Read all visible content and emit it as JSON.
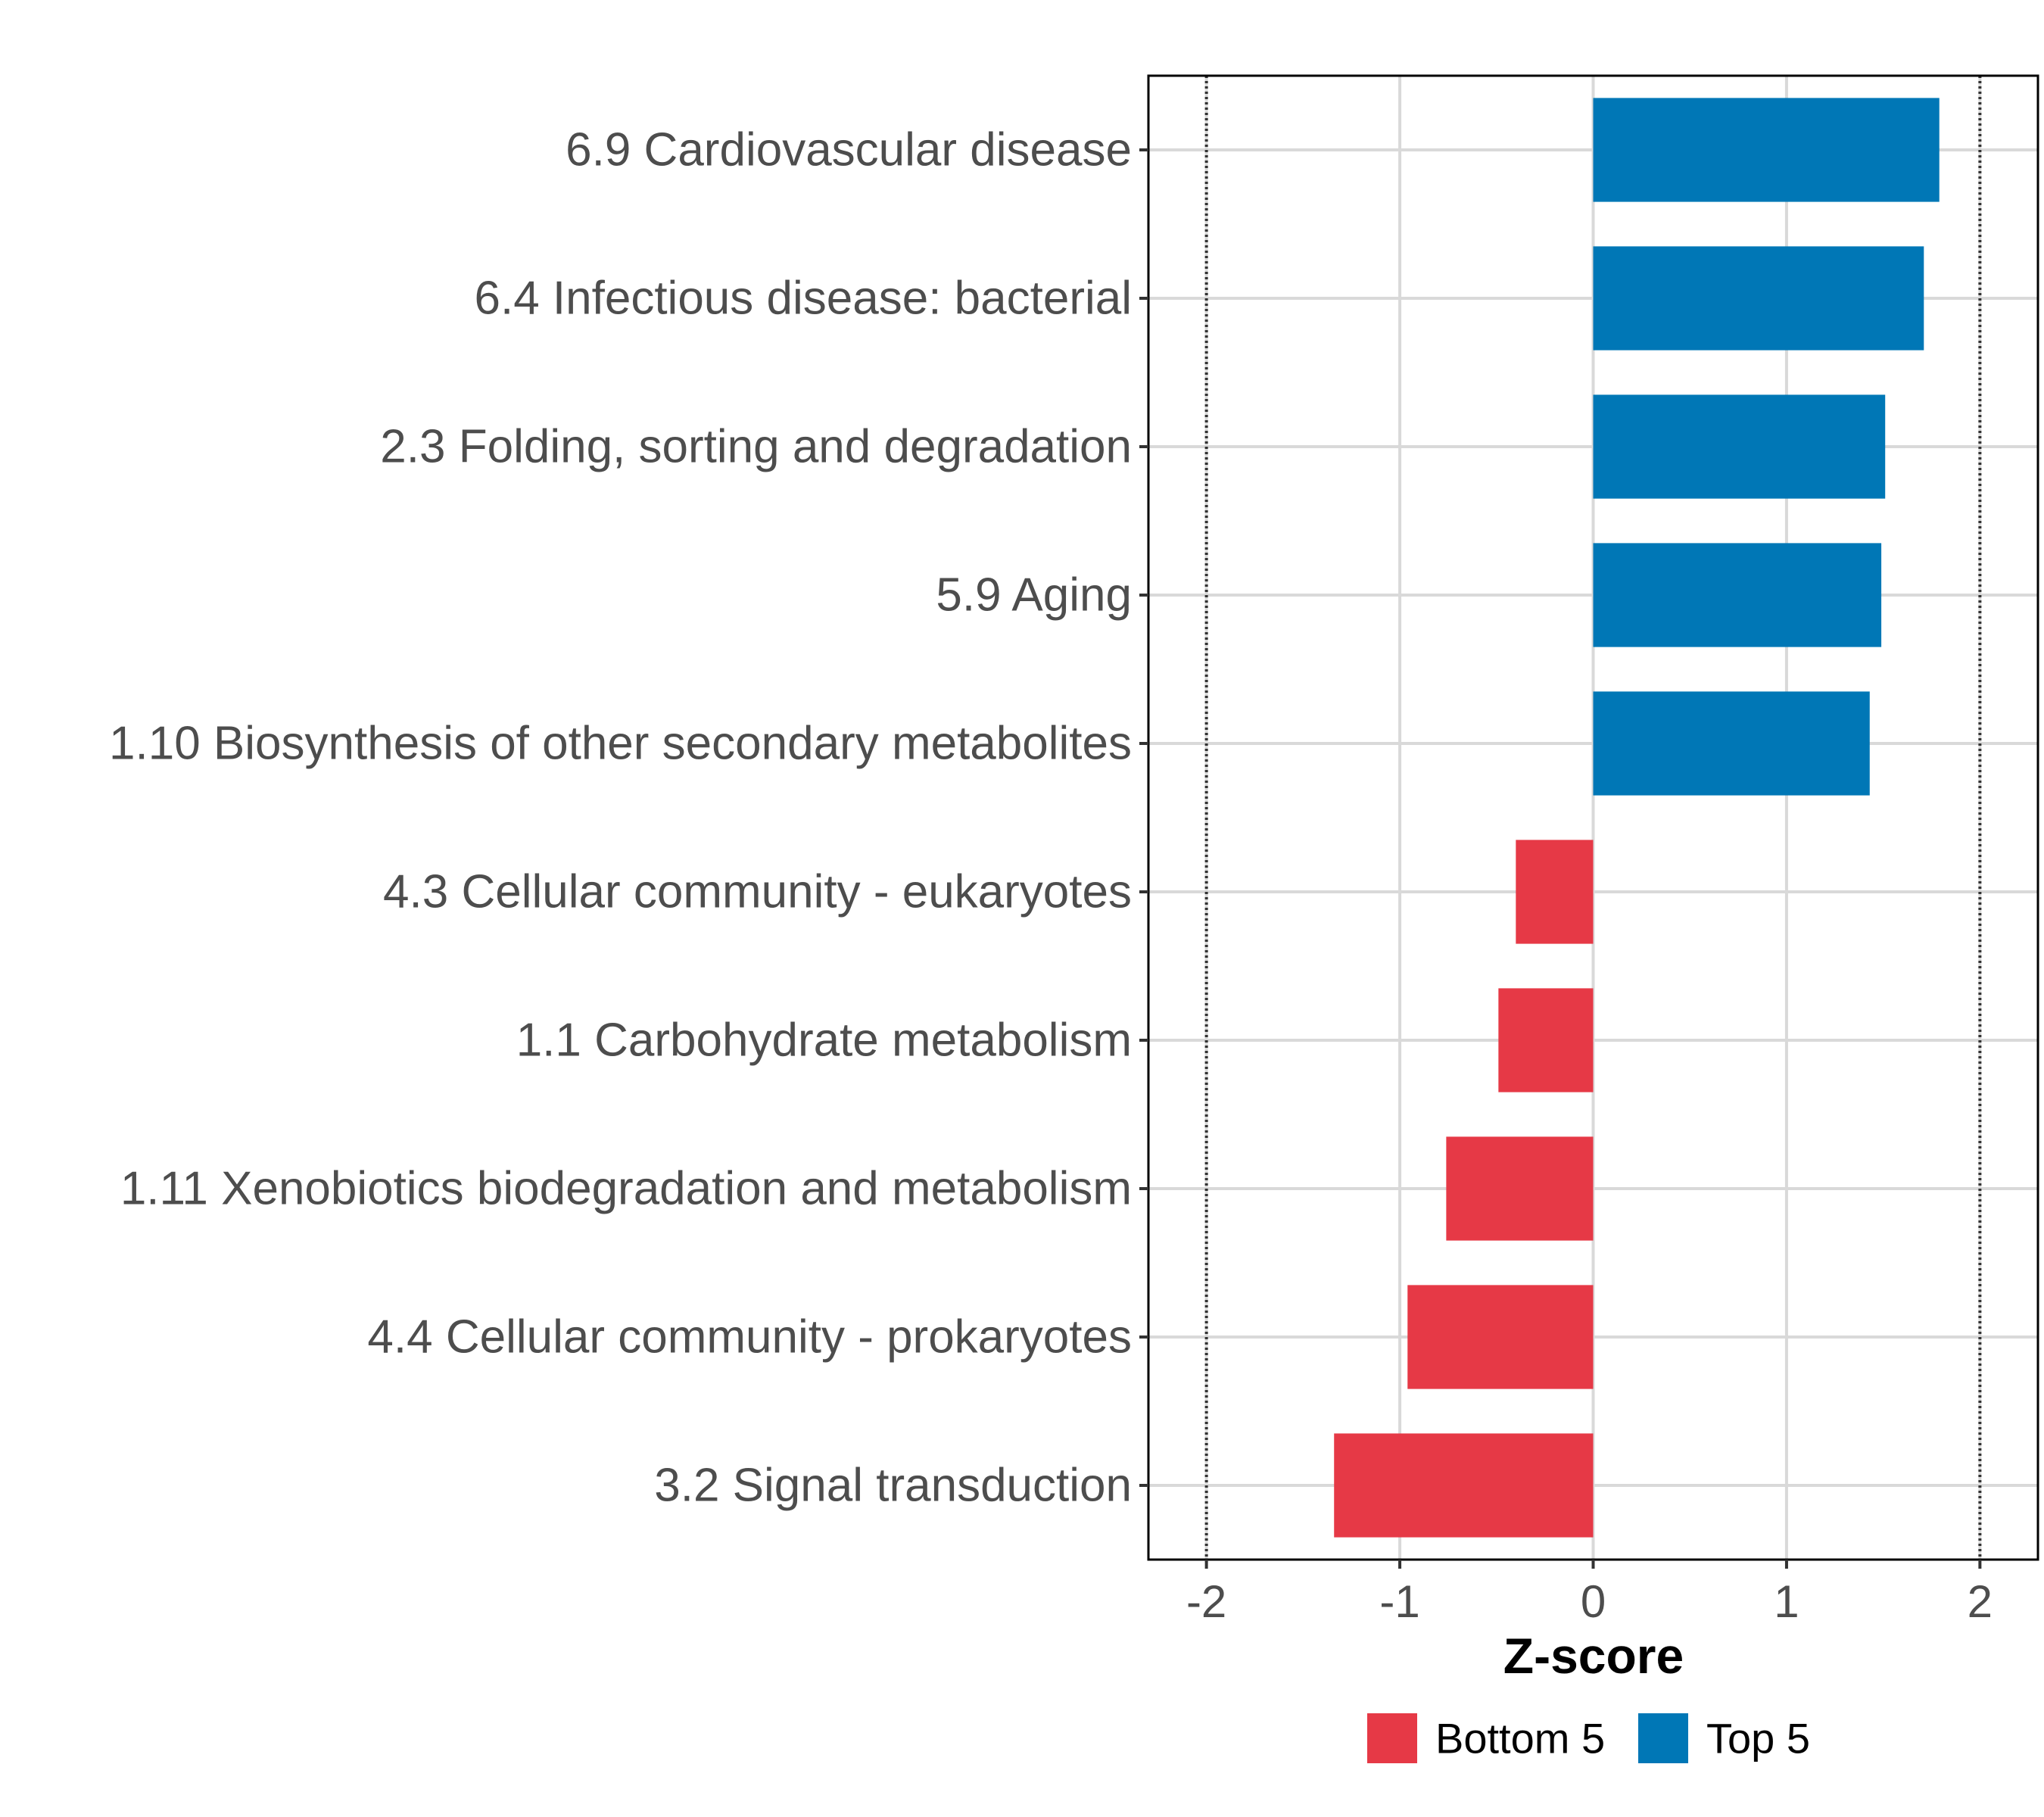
{
  "chart_data": {
    "type": "bar",
    "orientation": "horizontal",
    "title": "",
    "xlabel": "Z-score",
    "ylabel": "",
    "xlim": [
      -2.3,
      2.3
    ],
    "xticks": [
      -2,
      -1,
      0,
      1,
      2
    ],
    "threshold_lines": [
      -2,
      2
    ],
    "grid": true,
    "legend_position": "bottom",
    "categories": [
      "6.9 Cardiovascular disease",
      "6.4 Infectious disease: bacterial",
      "2.3 Folding, sorting and degradation",
      "5.9 Aging",
      "1.10 Biosynthesis of other secondary metabolites",
      "4.3 Cellular community - eukaryotes",
      "1.1 Carbohydrate metabolism",
      "1.11 Xenobiotics biodegradation and metabolism",
      "4.4 Cellular community - prokaryotes",
      "3.2 Signal transduction"
    ],
    "values": [
      1.79,
      1.71,
      1.51,
      1.49,
      1.43,
      -0.4,
      -0.49,
      -0.76,
      -0.96,
      -1.34
    ],
    "groups": [
      "Top 5",
      "Top 5",
      "Top 5",
      "Top 5",
      "Top 5",
      "Bottom 5",
      "Bottom 5",
      "Bottom 5",
      "Bottom 5",
      "Bottom 5"
    ],
    "legend": [
      {
        "name": "Bottom 5",
        "color": "#e63946"
      },
      {
        "name": "Top 5",
        "color": "#0077b6"
      }
    ]
  }
}
